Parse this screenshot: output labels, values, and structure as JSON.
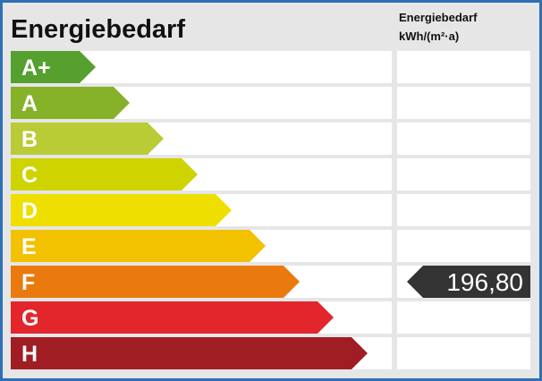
{
  "title": "Energiebedarf",
  "column_header": [
    "Energiebedarf",
    "kWh/(m²·a)"
  ],
  "classes": [
    {
      "label": "A+",
      "color": "#55a02e"
    },
    {
      "label": "A",
      "color": "#86b22a"
    },
    {
      "label": "B",
      "color": "#b9cb35"
    },
    {
      "label": "C",
      "color": "#cfd300"
    },
    {
      "label": "D",
      "color": "#efdf00"
    },
    {
      "label": "E",
      "color": "#f2c100"
    },
    {
      "label": "F",
      "color": "#ea7a0e",
      "value": "196,80"
    },
    {
      "label": "G",
      "color": "#e2262b"
    },
    {
      "label": "H",
      "color": "#a11d24"
    }
  ]
}
